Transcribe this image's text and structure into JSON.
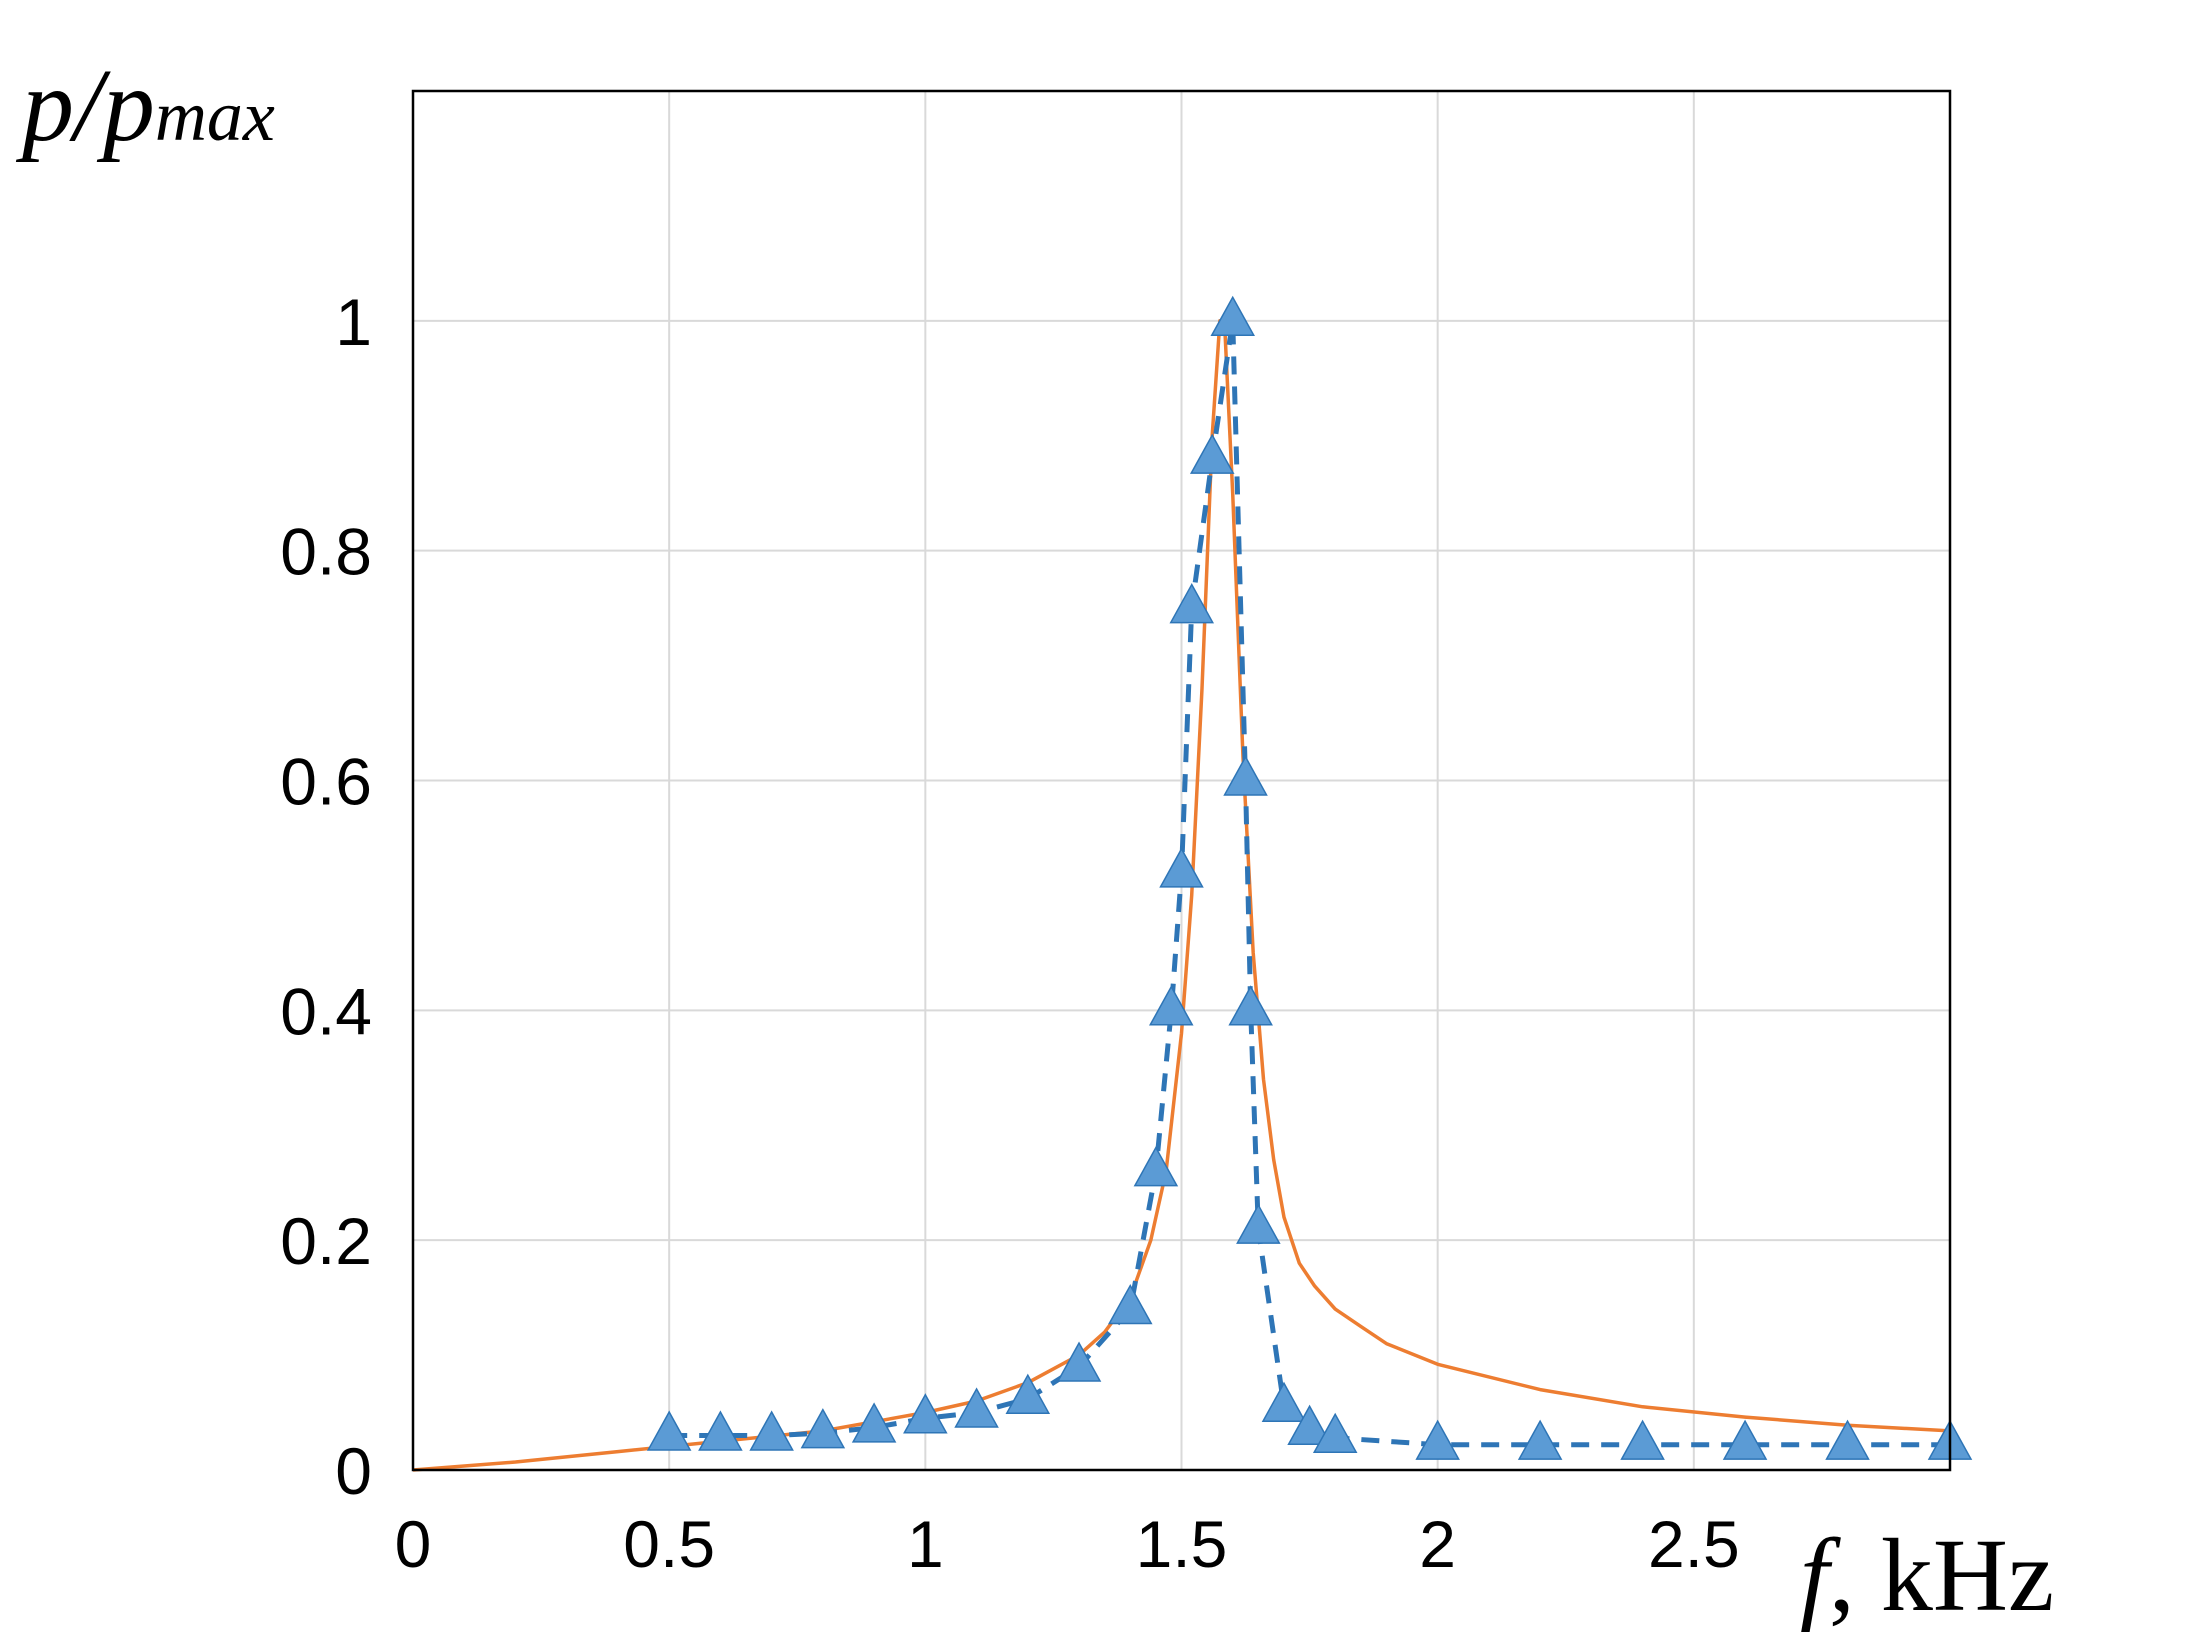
{
  "chart_data": {
    "type": "line",
    "title": "",
    "xlabel_symbol": "f",
    "xlabel_unit": ", kHz",
    "ylabel_symbol": "p/p",
    "ylabel_subscript": "max",
    "xlim": [
      0,
      3
    ],
    "ylim": [
      0,
      1.2
    ],
    "x_ticks": [
      0,
      0.5,
      1,
      1.5,
      2,
      2.5
    ],
    "x_tick_labels": [
      "0",
      "0.5",
      "1",
      "1.5",
      "2",
      "2.5"
    ],
    "y_ticks": [
      0,
      0.2,
      0.4,
      0.6,
      0.8,
      1
    ],
    "y_tick_labels": [
      "0",
      "0.2",
      "0.4",
      "0.6",
      "0.8",
      "1"
    ],
    "grid": true,
    "legend": "none",
    "series": [
      {
        "style": "solid-line",
        "color": "#ED7D31",
        "x": [
          0,
          0.2,
          0.4,
          0.6,
          0.8,
          1.0,
          1.1,
          1.2,
          1.3,
          1.35,
          1.4,
          1.44,
          1.47,
          1.5,
          1.52,
          1.54,
          1.56,
          1.575,
          1.585,
          1.6,
          1.62,
          1.64,
          1.66,
          1.68,
          1.7,
          1.73,
          1.76,
          1.8,
          1.85,
          1.9,
          2.0,
          2.2,
          2.4,
          2.6,
          2.8,
          3.0
        ],
        "values": [
          0.0,
          0.007,
          0.016,
          0.025,
          0.034,
          0.05,
          0.06,
          0.076,
          0.1,
          0.12,
          0.15,
          0.2,
          0.26,
          0.38,
          0.5,
          0.68,
          0.9,
          1.0,
          0.99,
          0.85,
          0.62,
          0.45,
          0.34,
          0.27,
          0.22,
          0.18,
          0.16,
          0.14,
          0.125,
          0.11,
          0.092,
          0.07,
          0.055,
          0.046,
          0.039,
          0.034
        ]
      },
      {
        "style": "dashed-line-triangles",
        "color": "#2E75B6",
        "marker_color": "#5B9BD5",
        "x": [
          0.5,
          0.6,
          0.7,
          0.8,
          0.9,
          1.0,
          1.1,
          1.2,
          1.3,
          1.4,
          1.45,
          1.48,
          1.5,
          1.52,
          1.56,
          1.6,
          1.625,
          1.635,
          1.65,
          1.7,
          1.75,
          1.8,
          2.0,
          2.2,
          2.4,
          2.6,
          2.8,
          3.0
        ],
        "values": [
          0.03,
          0.03,
          0.03,
          0.032,
          0.037,
          0.045,
          0.05,
          0.062,
          0.09,
          0.14,
          0.26,
          0.4,
          0.52,
          0.75,
          0.88,
          1.0,
          0.6,
          0.4,
          0.21,
          0.055,
          0.035,
          0.028,
          0.022,
          0.022,
          0.022,
          0.022,
          0.022,
          0.022
        ]
      }
    ]
  }
}
